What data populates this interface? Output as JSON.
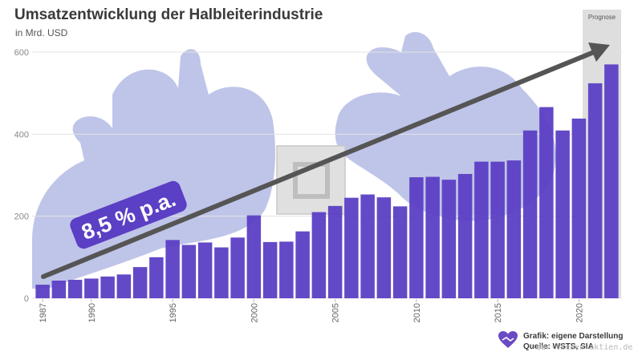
{
  "header": {
    "title": "Umsatzentwicklung der Halbleiterindustrie",
    "subtitle": "in Mrd. USD"
  },
  "annotations": {
    "cagr_label": "8,5 % p.a.",
    "forecast_label": "Prognose"
  },
  "footer": {
    "source_line1": "Grafik: eigene Darstellung",
    "source_line2": "Quelle: WSTS, SIA",
    "watermark": "dur-lieben-aktien.de"
  },
  "colors": {
    "bar": "#5b3fc4",
    "arrow": "#555555",
    "badge": "#5b3fc4",
    "forecast_band": "#d6d6d6",
    "grid": "#e3e3e3",
    "glove": "#8b96d6",
    "chip": "#c7c7c7",
    "logo": "#6a4bc4"
  },
  "chart_data": {
    "type": "bar",
    "title": "Umsatzentwicklung der Halbleiterindustrie",
    "ylabel": "in Mrd. USD",
    "xlabel": "",
    "ylim": [
      0,
      600
    ],
    "yticks": [
      0,
      200,
      400,
      600
    ],
    "grid": true,
    "forecast_years": [
      2021,
      2022
    ],
    "tick_labels": [
      "1987",
      "1990",
      "1995",
      "2000",
      "2005",
      "2010",
      "2015",
      "2020"
    ],
    "categories": [
      "1987",
      "1988",
      "1989",
      "1990",
      "1991",
      "1992",
      "1993",
      "1994",
      "1995",
      "1996",
      "1997",
      "1998",
      "1999",
      "2000",
      "2001",
      "2002",
      "2003",
      "2004",
      "2005",
      "2006",
      "2007",
      "2008",
      "2009",
      "2010",
      "2011",
      "2012",
      "2013",
      "2014",
      "2015",
      "2016",
      "2017",
      "2018",
      "2019",
      "2020",
      "2021",
      "2022"
    ],
    "values": [
      33,
      43,
      45,
      48,
      53,
      58,
      76,
      100,
      142,
      130,
      136,
      124,
      148,
      202,
      137,
      138,
      163,
      210,
      225,
      245,
      253,
      246,
      224,
      295,
      296,
      289,
      303,
      333,
      333,
      336,
      409,
      466,
      409,
      438,
      524,
      570
    ]
  }
}
